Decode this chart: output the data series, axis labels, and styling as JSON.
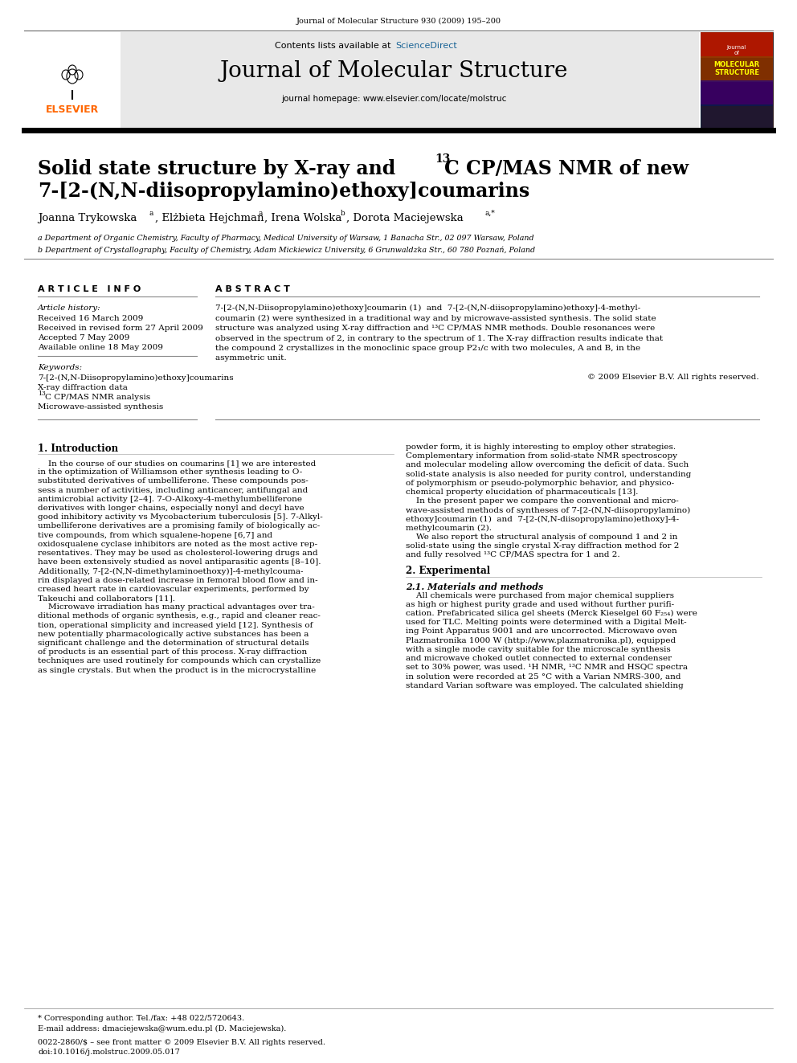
{
  "journal_info": "Journal of Molecular Structure 930 (2009) 195–200",
  "contents_line": "Contents lists available at ScienceDirect",
  "sciencedirect_color": "#1a6496",
  "journal_title": "Journal of Molecular Structure",
  "journal_homepage": "journal homepage: www.elsevier.com/locate/molstruc",
  "elsevier_color": "#FF6600",
  "paper_title_line1": "Solid state structure by X-ray and ",
  "paper_title_sup": "13",
  "paper_title_line1b": "C CP/MAS NMR of new",
  "paper_title_line2": "7-[2-(N,N-diisopropylamino)ethoxy]coumarins",
  "affil_a": "a Department of Organic Chemistry, Faculty of Pharmacy, Medical University of Warsaw, 1 Banacha Str., 02 097 Warsaw, Poland",
  "affil_b": "b Department of Crystallography, Faculty of Chemistry, Adam Mickiewicz University, 6 Grunwaldzka Str., 60 780 Poznań, Poland",
  "article_info_title": "A R T I C L E   I N F O",
  "article_history_label": "Article history:",
  "received": "Received 16 March 2009",
  "revised": "Received in revised form 27 April 2009",
  "accepted": "Accepted 7 May 2009",
  "available": "Available online 18 May 2009",
  "keywords_label": "Keywords:",
  "kw1": "7-[2-(N,N-Diisopropylamino)ethoxy]coumarins",
  "kw2": "X-ray diffraction data",
  "kw3": "13C CP/MAS NMR analysis",
  "kw4": "Microwave-assisted synthesis",
  "abstract_title": "A B S T R A C T",
  "copyright": "© 2009 Elsevier B.V. All rights reserved.",
  "intro_title": "1. Introduction",
  "experimental_title": "2. Experimental",
  "exp_sub_title": "2.1. Materials and methods",
  "footnote_star": "* Corresponding author. Tel./fax: +48 022/5720643.",
  "footnote_email": "E-mail address: dmaciejewska@wum.edu.pl (D. Maciejewska).",
  "footer_issn": "0022-2860/$ – see front matter © 2009 Elsevier B.V. All rights reserved.",
  "footer_doi": "doi:10.1016/j.molstruc.2009.05.017",
  "bg_header": "#e8e8e8",
  "bg_white": "#ffffff",
  "elsevier_orange": "#FF6600",
  "scidir_blue": "#1a6496",
  "thick_line_color": "#000000",
  "thin_line_color": "#888888"
}
